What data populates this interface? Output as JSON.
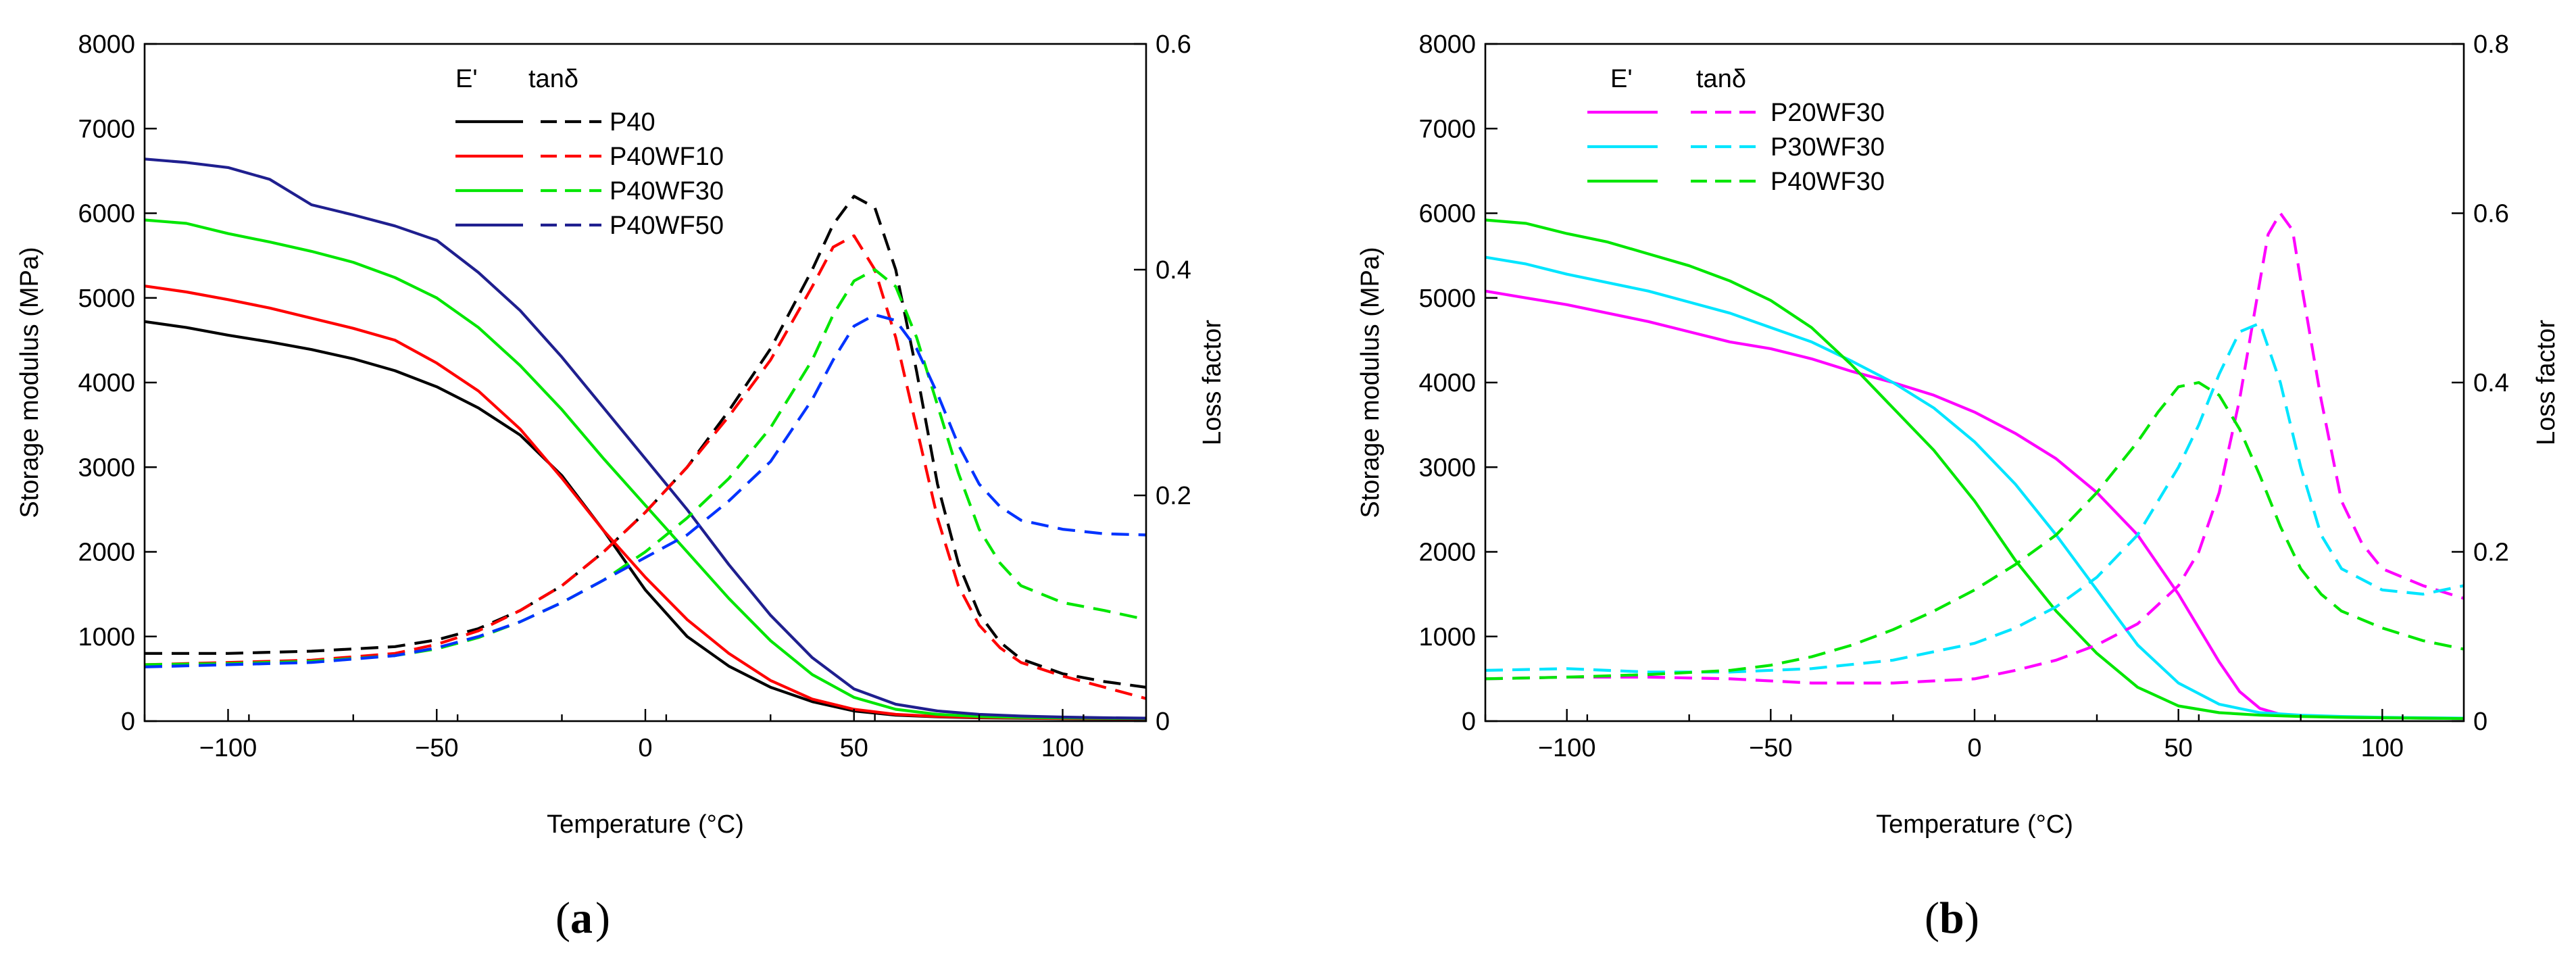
{
  "chart_data": [
    {
      "id": "a",
      "type": "line",
      "panel_label": "a",
      "xlabel": "Temperature (°C)",
      "ylabel": "Storage modulus (MPa)",
      "y2label": "Loss factor",
      "xlim": [
        -120,
        120
      ],
      "ylim": [
        0,
        8000
      ],
      "y2lim": [
        0,
        0.6
      ],
      "xticks": [
        -100,
        -50,
        0,
        50,
        100
      ],
      "xtick_labels": [
        "−100",
        "−50",
        "0",
        "50",
        "100"
      ],
      "yticks": [
        0,
        1000,
        2000,
        3000,
        4000,
        5000,
        6000,
        7000,
        8000
      ],
      "ytick_labels": [
        "0",
        "1000",
        "2000",
        "3000",
        "4000",
        "5000",
        "6000",
        "7000",
        "8000"
      ],
      "y2ticks": [
        0,
        0.2,
        0.4,
        0.6
      ],
      "y2tick_labels": [
        "0",
        "0.2",
        "0.4",
        "0.6"
      ],
      "legend": {
        "placement": "top-center",
        "header_storage": "E'",
        "header_loss": "tanδ",
        "entries": [
          {
            "label": "P40",
            "color": "#000000"
          },
          {
            "label": "P40WF10",
            "color": "#ff0000"
          },
          {
            "label": "P40WF30",
            "color": "#00e600"
          },
          {
            "label": "P40WF50",
            "color": "#1f1f8f"
          }
        ]
      },
      "series": [
        {
          "name": "P40",
          "quantity": "storage_modulus",
          "axis": "left",
          "style": "solid",
          "color": "#000000",
          "x": [
            -120,
            -110,
            -100,
            -90,
            -80,
            -70,
            -60,
            -50,
            -40,
            -30,
            -20,
            -10,
            0,
            10,
            20,
            30,
            40,
            50,
            60,
            70,
            80,
            90,
            100,
            110,
            120
          ],
          "y": [
            4720,
            4650,
            4560,
            4480,
            4390,
            4280,
            4140,
            3950,
            3700,
            3380,
            2900,
            2250,
            1550,
            1000,
            650,
            400,
            230,
            120,
            70,
            50,
            40,
            35,
            30,
            28,
            25
          ]
        },
        {
          "name": "P40WF10",
          "quantity": "storage_modulus",
          "axis": "left",
          "style": "solid",
          "color": "#ff0000",
          "x": [
            -120,
            -110,
            -100,
            -90,
            -80,
            -70,
            -60,
            -50,
            -40,
            -30,
            -20,
            -10,
            0,
            10,
            20,
            30,
            40,
            50,
            60,
            70,
            80,
            90,
            100,
            110,
            120
          ],
          "y": [
            5140,
            5070,
            4980,
            4880,
            4760,
            4640,
            4500,
            4230,
            3900,
            3450,
            2870,
            2250,
            1700,
            1200,
            800,
            480,
            260,
            140,
            80,
            55,
            45,
            38,
            32,
            30,
            28
          ]
        },
        {
          "name": "P40WF30",
          "quantity": "storage_modulus",
          "axis": "left",
          "style": "solid",
          "color": "#00e600",
          "x": [
            -120,
            -110,
            -100,
            -90,
            -80,
            -70,
            -60,
            -50,
            -40,
            -30,
            -20,
            -10,
            0,
            10,
            20,
            30,
            40,
            50,
            60,
            70,
            80,
            90,
            100,
            110,
            120
          ],
          "y": [
            5920,
            5880,
            5760,
            5660,
            5550,
            5420,
            5240,
            5000,
            4650,
            4200,
            3680,
            3100,
            2550,
            2000,
            1450,
            950,
            550,
            280,
            140,
            80,
            55,
            45,
            38,
            34,
            30
          ]
        },
        {
          "name": "P40WF50",
          "quantity": "storage_modulus",
          "axis": "left",
          "style": "solid",
          "color": "#1f1f8f",
          "x": [
            -120,
            -110,
            -100,
            -90,
            -80,
            -70,
            -60,
            -50,
            -40,
            -30,
            -20,
            -10,
            0,
            10,
            20,
            30,
            40,
            50,
            60,
            70,
            80,
            90,
            100,
            110,
            120
          ],
          "y": [
            6640,
            6600,
            6540,
            6400,
            6100,
            5980,
            5850,
            5680,
            5300,
            4850,
            4300,
            3700,
            3100,
            2500,
            1850,
            1250,
            750,
            380,
            200,
            120,
            80,
            60,
            48,
            40,
            35
          ]
        },
        {
          "name": "P40",
          "quantity": "loss_factor",
          "axis": "right",
          "style": "dashed",
          "color": "#000000",
          "x": [
            -120,
            -100,
            -80,
            -60,
            -50,
            -40,
            -30,
            -20,
            -10,
            0,
            10,
            20,
            30,
            40,
            45,
            50,
            55,
            60,
            65,
            70,
            75,
            80,
            85,
            90,
            100,
            110,
            120
          ],
          "y": [
            0.06,
            0.06,
            0.062,
            0.066,
            0.072,
            0.082,
            0.098,
            0.12,
            0.15,
            0.185,
            0.225,
            0.275,
            0.33,
            0.4,
            0.44,
            0.465,
            0.455,
            0.4,
            0.31,
            0.21,
            0.14,
            0.095,
            0.07,
            0.055,
            0.042,
            0.035,
            0.03
          ]
        },
        {
          "name": "P40WF10",
          "quantity": "loss_factor",
          "axis": "right",
          "style": "dashed",
          "color": "#ff0000",
          "x": [
            -120,
            -100,
            -80,
            -60,
            -50,
            -40,
            -30,
            -20,
            -10,
            0,
            10,
            20,
            30,
            40,
            45,
            50,
            55,
            60,
            65,
            70,
            75,
            80,
            85,
            90,
            100,
            110,
            120
          ],
          "y": [
            0.05,
            0.052,
            0.054,
            0.06,
            0.068,
            0.08,
            0.098,
            0.12,
            0.15,
            0.185,
            0.225,
            0.27,
            0.32,
            0.385,
            0.42,
            0.43,
            0.4,
            0.34,
            0.26,
            0.18,
            0.12,
            0.085,
            0.065,
            0.052,
            0.04,
            0.03,
            0.02
          ]
        },
        {
          "name": "P40WF30",
          "quantity": "loss_factor",
          "axis": "right",
          "style": "dashed",
          "color": "#00e600",
          "x": [
            -120,
            -100,
            -80,
            -60,
            -50,
            -40,
            -30,
            -20,
            -10,
            0,
            10,
            20,
            30,
            40,
            45,
            50,
            55,
            60,
            65,
            70,
            75,
            80,
            85,
            90,
            100,
            110,
            120
          ],
          "y": [
            0.05,
            0.051,
            0.053,
            0.058,
            0.064,
            0.074,
            0.088,
            0.105,
            0.125,
            0.15,
            0.18,
            0.215,
            0.26,
            0.32,
            0.36,
            0.39,
            0.4,
            0.385,
            0.34,
            0.28,
            0.22,
            0.17,
            0.14,
            0.12,
            0.105,
            0.098,
            0.09
          ]
        },
        {
          "name": "P40WF50",
          "quantity": "loss_factor",
          "axis": "right",
          "style": "dashed",
          "color": "#0033ff",
          "x": [
            -120,
            -100,
            -80,
            -60,
            -50,
            -40,
            -30,
            -20,
            -10,
            0,
            10,
            20,
            30,
            40,
            45,
            50,
            55,
            60,
            65,
            70,
            75,
            80,
            85,
            90,
            100,
            110,
            120
          ],
          "y": [
            0.048,
            0.05,
            0.052,
            0.058,
            0.065,
            0.075,
            0.088,
            0.105,
            0.125,
            0.145,
            0.165,
            0.195,
            0.23,
            0.285,
            0.32,
            0.35,
            0.36,
            0.355,
            0.33,
            0.29,
            0.245,
            0.21,
            0.19,
            0.178,
            0.17,
            0.166,
            0.165
          ]
        }
      ]
    },
    {
      "id": "b",
      "type": "line",
      "panel_label": "b",
      "xlabel": "Temperature (°C)",
      "ylabel": "Storage modulus (MPa)",
      "y2label": "Loss factor",
      "xlim": [
        -120,
        120
      ],
      "ylim": [
        0,
        8000
      ],
      "y2lim": [
        0,
        0.8
      ],
      "xticks": [
        -100,
        -50,
        0,
        50,
        100
      ],
      "xtick_labels": [
        "−100",
        "−50",
        "0",
        "50",
        "100"
      ],
      "yticks": [
        0,
        1000,
        2000,
        3000,
        4000,
        5000,
        6000,
        7000,
        8000
      ],
      "ytick_labels": [
        "0",
        "1000",
        "2000",
        "3000",
        "4000",
        "5000",
        "6000",
        "7000",
        "8000"
      ],
      "y2ticks": [
        0,
        0.2,
        0.4,
        0.6,
        0.8
      ],
      "y2tick_labels": [
        "0",
        "0.2",
        "0.4",
        "0.6",
        "0.8"
      ],
      "legend": {
        "placement": "top-left",
        "header_storage": "E'",
        "header_loss": "tanδ",
        "entries": [
          {
            "label": "P20WF30",
            "color": "#ff00ff"
          },
          {
            "label": "P30WF30",
            "color": "#00e5ff"
          },
          {
            "label": "P40WF30",
            "color": "#00e600"
          }
        ]
      },
      "series": [
        {
          "name": "P20WF30",
          "quantity": "storage_modulus",
          "axis": "left",
          "style": "solid",
          "color": "#ff00ff",
          "x": [
            -120,
            -110,
            -100,
            -90,
            -80,
            -70,
            -60,
            -50,
            -40,
            -30,
            -20,
            -10,
            0,
            10,
            20,
            30,
            40,
            50,
            60,
            65,
            70,
            75,
            80,
            90,
            100,
            110,
            120
          ],
          "y": [
            5080,
            5000,
            4920,
            4820,
            4720,
            4600,
            4480,
            4400,
            4280,
            4130,
            4000,
            3850,
            3650,
            3400,
            3100,
            2700,
            2200,
            1500,
            700,
            350,
            150,
            80,
            60,
            45,
            40,
            35,
            30
          ]
        },
        {
          "name": "P30WF30",
          "quantity": "storage_modulus",
          "axis": "left",
          "style": "solid",
          "color": "#00e5ff",
          "x": [
            -120,
            -110,
            -100,
            -90,
            -80,
            -70,
            -60,
            -50,
            -40,
            -30,
            -20,
            -10,
            0,
            10,
            20,
            30,
            40,
            50,
            60,
            70,
            80,
            90,
            100,
            110,
            120
          ],
          "y": [
            5480,
            5400,
            5280,
            5180,
            5080,
            4950,
            4820,
            4650,
            4480,
            4250,
            4000,
            3700,
            3300,
            2800,
            2200,
            1550,
            900,
            450,
            200,
            100,
            70,
            55,
            45,
            40,
            35
          ]
        },
        {
          "name": "P40WF30",
          "quantity": "storage_modulus",
          "axis": "left",
          "style": "solid",
          "color": "#00e600",
          "x": [
            -120,
            -110,
            -100,
            -90,
            -80,
            -70,
            -60,
            -50,
            -40,
            -30,
            -20,
            -10,
            0,
            10,
            20,
            30,
            40,
            50,
            60,
            70,
            80,
            90,
            100,
            110,
            120
          ],
          "y": [
            5920,
            5880,
            5760,
            5660,
            5520,
            5380,
            5200,
            4970,
            4650,
            4200,
            3700,
            3200,
            2600,
            1900,
            1300,
            800,
            400,
            180,
            100,
            70,
            55,
            45,
            40,
            35,
            30
          ]
        },
        {
          "name": "P20WF30",
          "quantity": "loss_factor",
          "axis": "right",
          "style": "dashed",
          "color": "#ff00ff",
          "x": [
            -120,
            -100,
            -80,
            -60,
            -40,
            -20,
            0,
            10,
            20,
            30,
            40,
            50,
            55,
            60,
            65,
            70,
            72,
            75,
            78,
            80,
            85,
            90,
            95,
            100,
            110,
            120
          ],
          "y": [
            0.05,
            0.052,
            0.052,
            0.05,
            0.045,
            0.045,
            0.05,
            0.06,
            0.072,
            0.09,
            0.115,
            0.16,
            0.2,
            0.27,
            0.38,
            0.52,
            0.575,
            0.6,
            0.58,
            0.52,
            0.38,
            0.26,
            0.21,
            0.18,
            0.16,
            0.145
          ]
        },
        {
          "name": "P30WF30",
          "quantity": "loss_factor",
          "axis": "right",
          "style": "dashed",
          "color": "#00e5ff",
          "x": [
            -120,
            -100,
            -90,
            -80,
            -60,
            -40,
            -20,
            0,
            10,
            20,
            30,
            40,
            50,
            55,
            60,
            65,
            70,
            75,
            80,
            85,
            90,
            100,
            110,
            120
          ],
          "y": [
            0.06,
            0.062,
            0.06,
            0.058,
            0.058,
            0.062,
            0.072,
            0.092,
            0.11,
            0.135,
            0.17,
            0.22,
            0.3,
            0.35,
            0.41,
            0.46,
            0.47,
            0.4,
            0.3,
            0.22,
            0.18,
            0.155,
            0.15,
            0.16
          ]
        },
        {
          "name": "P40WF30",
          "quantity": "loss_factor",
          "axis": "right",
          "style": "dashed",
          "color": "#00e600",
          "x": [
            -120,
            -100,
            -80,
            -60,
            -50,
            -40,
            -30,
            -20,
            -10,
            0,
            10,
            20,
            30,
            40,
            45,
            50,
            55,
            60,
            65,
            70,
            75,
            80,
            85,
            90,
            100,
            110,
            120
          ],
          "y": [
            0.05,
            0.052,
            0.055,
            0.06,
            0.066,
            0.076,
            0.09,
            0.108,
            0.13,
            0.155,
            0.185,
            0.22,
            0.27,
            0.33,
            0.365,
            0.395,
            0.4,
            0.385,
            0.345,
            0.29,
            0.23,
            0.18,
            0.15,
            0.13,
            0.11,
            0.095,
            0.085
          ]
        }
      ]
    }
  ]
}
